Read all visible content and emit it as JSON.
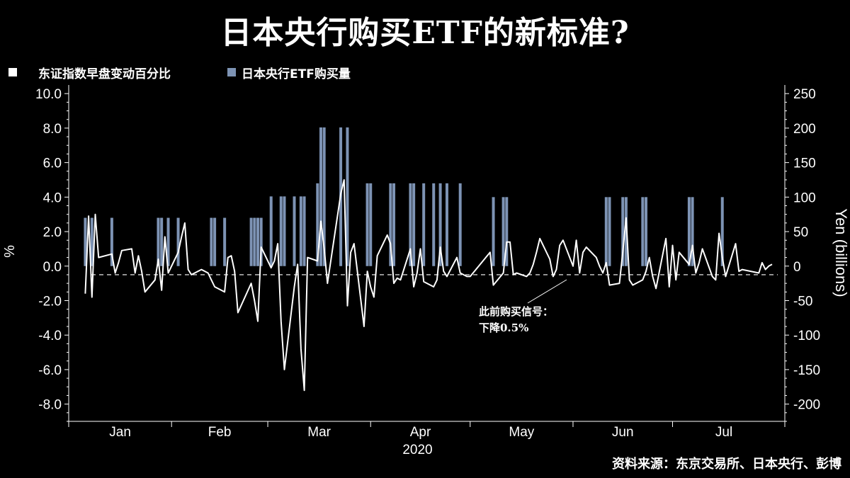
{
  "title": "日本央行购买ETF的新标准?",
  "legend": [
    {
      "label": "东证指数早盘变动百分比",
      "color": "#ffffff"
    },
    {
      "label": "日本央行ETF购买量",
      "color": "#7d93b4"
    }
  ],
  "source": "资料来源：东京交易所、日本央行、彭博",
  "colors": {
    "background": "#000000",
    "line": "#ffffff",
    "bars": "#7d93b4",
    "threshold": "#ffffff"
  },
  "chart_data": {
    "type": "bar+line",
    "x_months": [
      "Jan",
      "Feb",
      "Mar",
      "Apr",
      "May",
      "Jun",
      "Jul"
    ],
    "x_year": "2020",
    "ylabel_left": "%",
    "ylabel_right": "Yen (billions)",
    "y_left": {
      "min": -9,
      "max": 10.5,
      "ticks": [
        "10.0",
        "8.0",
        "6.0",
        "4.0",
        "2.0",
        "0.0",
        "-2.0",
        "-4.0",
        "-6.0",
        "-8.0"
      ],
      "tick_values": [
        10,
        8,
        6,
        4,
        2,
        0,
        -2,
        -4,
        -6,
        -8
      ]
    },
    "y_right": {
      "min": -225,
      "max": 262.5,
      "ticks": [
        "250",
        "200",
        "150",
        "100",
        "50",
        "0",
        "-50",
        "-100",
        "-150",
        "-200"
      ],
      "tick_values": [
        250,
        200,
        150,
        100,
        50,
        0,
        -50,
        -100,
        -150,
        -200
      ]
    },
    "threshold": -0.5,
    "annotation": {
      "line1": "此前购买信号：",
      "line2": "下降0.5%"
    },
    "series": [
      {
        "name": "东证指数早盘变动百分比",
        "axis": "left",
        "kind": "line",
        "values": [
          -1.6,
          2.9,
          -1.8,
          3.0,
          0.5,
          0.7,
          -0.4,
          0.2,
          0.9,
          1.0,
          -0.4,
          0.6,
          -0.3,
          -1.5,
          -0.8,
          0.4,
          -1.4,
          1.7,
          -0.4,
          0.8,
          1.7,
          2.5,
          -0.2,
          -0.5,
          -0.2,
          -0.4,
          -0.8,
          -1.2,
          -1.5,
          0.5,
          0.6,
          -0.3,
          -2.7,
          -1.0,
          -2.0,
          -3.2,
          1.1,
          -0.1,
          0.3,
          1.3,
          -3.2,
          -6.0,
          -1.2,
          0.1,
          -4.8,
          -7.2,
          0.5,
          0.3,
          2.6,
          1.0,
          -1.0,
          4.2,
          5.0,
          -2.3,
          0.8,
          1.3,
          -3.5,
          -0.3,
          -1.2,
          -1.8,
          0.6,
          1.8,
          1.3,
          -1.0,
          -0.7,
          -0.8,
          1.0,
          -1.2,
          -0.4,
          1.0,
          -0.9,
          -1.2,
          -0.8,
          1.1,
          -0.3,
          -0.6,
          0.5,
          -0.4,
          -0.6,
          -0.6,
          0.8,
          -1.1,
          -0.4,
          1.4,
          1.4,
          -0.5,
          -0.4,
          -0.6,
          -0.4,
          0.1,
          0.8,
          1.6,
          0.4,
          -0.6,
          -0.2,
          1.2,
          1.5,
          0.0,
          1.5,
          -0.4,
          0.8,
          1.1,
          0.5,
          0.0,
          -0.4,
          0.2,
          -1.1,
          -1.0,
          0.8,
          2.8,
          -0.8,
          -1.1,
          -0.8,
          -0.3,
          0.5,
          -0.6,
          -1.3,
          1.6,
          -1.2,
          1.2,
          -0.8,
          0.8,
          0.1,
          1.2,
          -0.4,
          0.2,
          1.0,
          -0.6,
          -0.8,
          1.9,
          0.5,
          -0.6,
          1.3,
          -0.3,
          -0.2,
          -0.4,
          0.2,
          -0.2,
          0.0,
          0.1
        ],
        "dates": [
          "2020-01-06",
          "2020-01-07",
          "2020-01-08",
          "2020-01-09",
          "2020-01-10",
          "2020-01-14",
          "2020-01-15",
          "2020-01-16",
          "2020-01-17",
          "2020-01-20",
          "2020-01-21",
          "2020-01-22",
          "2020-01-23",
          "2020-01-24",
          "2020-01-27",
          "2020-01-28",
          "2020-01-29",
          "2020-01-30",
          "2020-01-31",
          "2020-02-03",
          "2020-02-04",
          "2020-02-05",
          "2020-02-06",
          "2020-02-07",
          "2020-02-10",
          "2020-02-12",
          "2020-02-13",
          "2020-02-14",
          "2020-02-17",
          "2020-02-18",
          "2020-02-19",
          "2020-02-20",
          "2020-02-21",
          "2020-02-25",
          "2020-02-26",
          "2020-02-27",
          "2020-02-28",
          "2020-03-02",
          "2020-03-03",
          "2020-03-04",
          "2020-03-05",
          "2020-03-06",
          "2020-03-09",
          "2020-03-10",
          "2020-03-11",
          "2020-03-12",
          "2020-03-13",
          "2020-03-16",
          "2020-03-17",
          "2020-03-18",
          "2020-03-19",
          "2020-03-23",
          "2020-03-24",
          "2020-03-25",
          "2020-03-26",
          "2020-03-27",
          "2020-03-30",
          "2020-03-31",
          "2020-04-01",
          "2020-04-02",
          "2020-04-03",
          "2020-04-06",
          "2020-04-07",
          "2020-04-08",
          "2020-04-09",
          "2020-04-10",
          "2020-04-13",
          "2020-04-14",
          "2020-04-15",
          "2020-04-16",
          "2020-04-17",
          "2020-04-20",
          "2020-04-21",
          "2020-04-22",
          "2020-04-23",
          "2020-04-24",
          "2020-04-27",
          "2020-04-28",
          "2020-04-30",
          "2020-05-01",
          "2020-05-07",
          "2020-05-08",
          "2020-05-11",
          "2020-05-12",
          "2020-05-13",
          "2020-05-14",
          "2020-05-15",
          "2020-05-18",
          "2020-05-19",
          "2020-05-20",
          "2020-05-21",
          "2020-05-22",
          "2020-05-25",
          "2020-05-26",
          "2020-05-27",
          "2020-05-28",
          "2020-05-29",
          "2020-06-01",
          "2020-06-02",
          "2020-06-03",
          "2020-06-04",
          "2020-06-05",
          "2020-06-08",
          "2020-06-09",
          "2020-06-10",
          "2020-06-11",
          "2020-06-12",
          "2020-06-15",
          "2020-06-16",
          "2020-06-17",
          "2020-06-18",
          "2020-06-19",
          "2020-06-22",
          "2020-06-23",
          "2020-06-24",
          "2020-06-25",
          "2020-06-26",
          "2020-06-29",
          "2020-06-30",
          "2020-07-01",
          "2020-07-02",
          "2020-07-03",
          "2020-07-06",
          "2020-07-07",
          "2020-07-08",
          "2020-07-09",
          "2020-07-10",
          "2020-07-13",
          "2020-07-14",
          "2020-07-15",
          "2020-07-16",
          "2020-07-17",
          "2020-07-20",
          "2020-07-21",
          "2020-07-22",
          "2020-07-27",
          "2020-07-28",
          "2020-07-29",
          "2020-07-30",
          "2020-07-31"
        ]
      },
      {
        "name": "日本央行ETF购买量",
        "axis": "right",
        "kind": "bar",
        "points": [
          {
            "date": "2020-01-06",
            "value": 70
          },
          {
            "date": "2020-01-08",
            "value": 70
          },
          {
            "date": "2020-01-14",
            "value": 70
          },
          {
            "date": "2020-01-28",
            "value": 70
          },
          {
            "date": "2020-01-29",
            "value": 70
          },
          {
            "date": "2020-01-31",
            "value": 70
          },
          {
            "date": "2020-02-03",
            "value": 70
          },
          {
            "date": "2020-02-13",
            "value": 70
          },
          {
            "date": "2020-02-14",
            "value": 70
          },
          {
            "date": "2020-02-17",
            "value": 70
          },
          {
            "date": "2020-02-25",
            "value": 70
          },
          {
            "date": "2020-02-26",
            "value": 70
          },
          {
            "date": "2020-02-27",
            "value": 70
          },
          {
            "date": "2020-02-28",
            "value": 70
          },
          {
            "date": "2020-03-02",
            "value": 101
          },
          {
            "date": "2020-03-05",
            "value": 101
          },
          {
            "date": "2020-03-06",
            "value": 101
          },
          {
            "date": "2020-03-09",
            "value": 101
          },
          {
            "date": "2020-03-11",
            "value": 101
          },
          {
            "date": "2020-03-12",
            "value": 101
          },
          {
            "date": "2020-03-16",
            "value": 120
          },
          {
            "date": "2020-03-17",
            "value": 201
          },
          {
            "date": "2020-03-18",
            "value": 201
          },
          {
            "date": "2020-03-23",
            "value": 201
          },
          {
            "date": "2020-03-25",
            "value": 201
          },
          {
            "date": "2020-03-31",
            "value": 120
          },
          {
            "date": "2020-04-01",
            "value": 120
          },
          {
            "date": "2020-04-07",
            "value": 120
          },
          {
            "date": "2020-04-08",
            "value": 120
          },
          {
            "date": "2020-04-13",
            "value": 120
          },
          {
            "date": "2020-04-14",
            "value": 120
          },
          {
            "date": "2020-04-17",
            "value": 120
          },
          {
            "date": "2020-04-20",
            "value": 120
          },
          {
            "date": "2020-04-22",
            "value": 120
          },
          {
            "date": "2020-04-24",
            "value": 120
          },
          {
            "date": "2020-04-28",
            "value": 120
          },
          {
            "date": "2020-05-08",
            "value": 100
          },
          {
            "date": "2020-05-11",
            "value": 100
          },
          {
            "date": "2020-05-12",
            "value": 100
          },
          {
            "date": "2020-06-11",
            "value": 100
          },
          {
            "date": "2020-06-12",
            "value": 100
          },
          {
            "date": "2020-06-16",
            "value": 100
          },
          {
            "date": "2020-06-17",
            "value": 100
          },
          {
            "date": "2020-06-22",
            "value": 100
          },
          {
            "date": "2020-06-23",
            "value": 100
          },
          {
            "date": "2020-07-06",
            "value": 100
          },
          {
            "date": "2020-07-07",
            "value": 100
          },
          {
            "date": "2020-07-16",
            "value": 100
          }
        ]
      }
    ],
    "grid": false,
    "legend_position": "top-left"
  }
}
